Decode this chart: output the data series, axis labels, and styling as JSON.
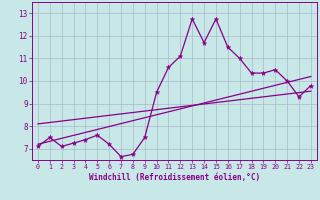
{
  "xlabel": "Windchill (Refroidissement éolien,°C)",
  "ylabel": "",
  "xlim": [
    -0.5,
    23.5
  ],
  "ylim": [
    6.5,
    13.5
  ],
  "yticks": [
    7,
    8,
    9,
    10,
    11,
    12,
    13
  ],
  "xticks": [
    0,
    1,
    2,
    3,
    4,
    5,
    6,
    7,
    8,
    9,
    10,
    11,
    12,
    13,
    14,
    15,
    16,
    17,
    18,
    19,
    20,
    21,
    22,
    23
  ],
  "background_color": "#c8e8e8",
  "grid_color": "#aab8cc",
  "line_color": "#880088",
  "scatter_data": [
    [
      0,
      7.1
    ],
    [
      1,
      7.5
    ],
    [
      2,
      7.1
    ],
    [
      3,
      7.25
    ],
    [
      4,
      7.4
    ],
    [
      5,
      7.6
    ],
    [
      6,
      7.2
    ],
    [
      7,
      6.65
    ],
    [
      8,
      6.75
    ],
    [
      9,
      7.5
    ],
    [
      10,
      9.5
    ],
    [
      11,
      10.6
    ],
    [
      12,
      11.1
    ],
    [
      13,
      12.75
    ],
    [
      14,
      11.7
    ],
    [
      15,
      12.75
    ],
    [
      16,
      11.5
    ],
    [
      17,
      11.0
    ],
    [
      18,
      10.35
    ],
    [
      19,
      10.35
    ],
    [
      20,
      10.5
    ],
    [
      21,
      10.0
    ],
    [
      22,
      9.3
    ],
    [
      23,
      9.8
    ]
  ],
  "reg_line1_x": [
    0,
    23
  ],
  "reg_line1_y": [
    7.2,
    10.2
  ],
  "reg_line2_x": [
    0,
    23
  ],
  "reg_line2_y": [
    8.1,
    9.55
  ]
}
